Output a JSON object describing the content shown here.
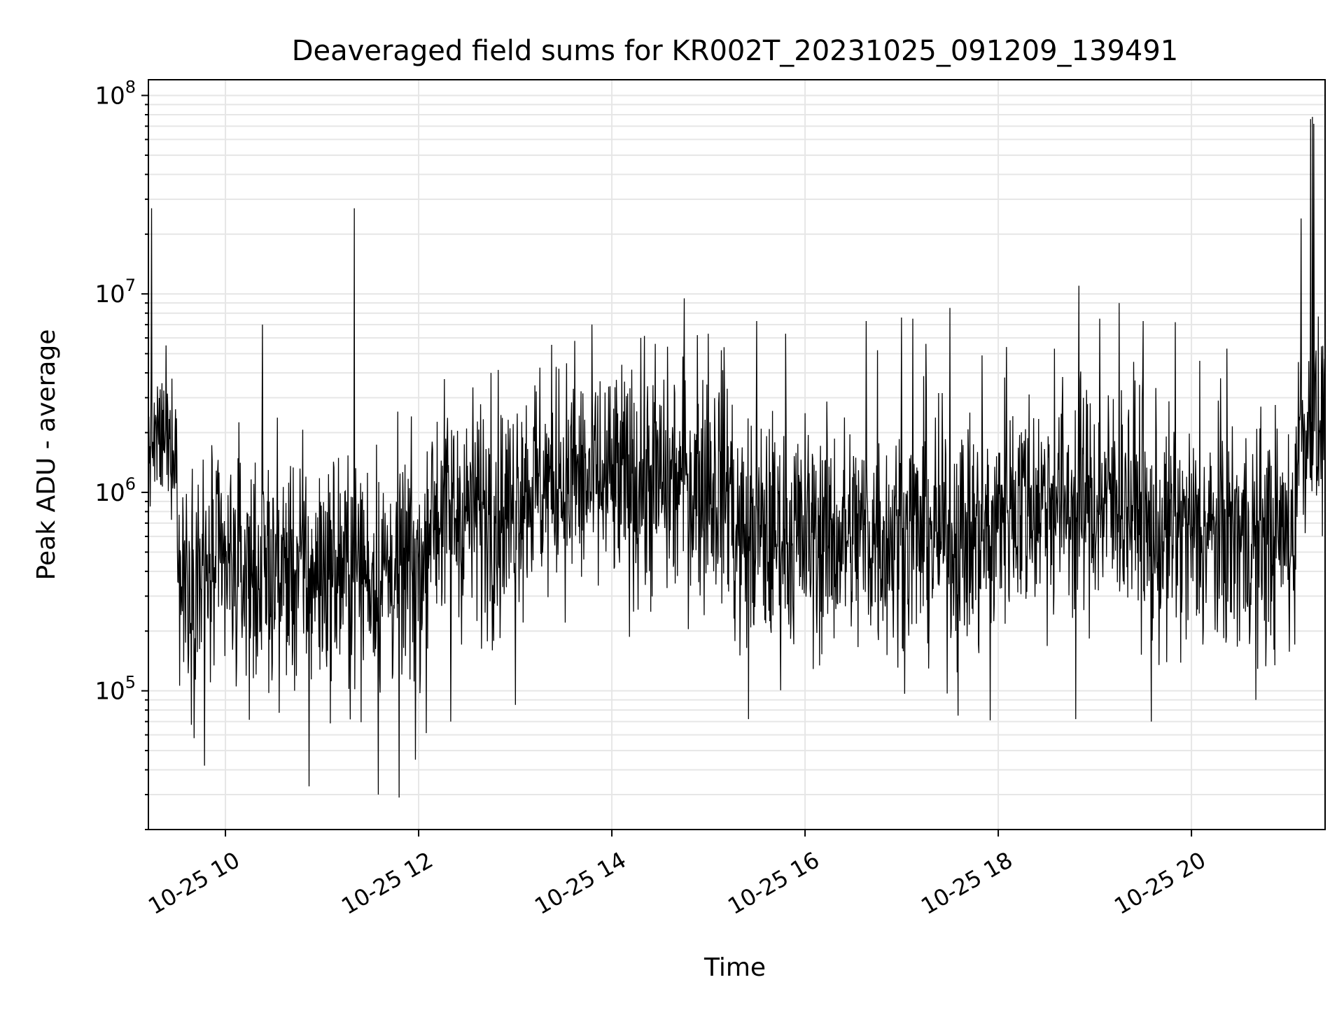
{
  "chart_data": {
    "type": "line",
    "title": "Deaveraged field sums for KR002T_20231025_091209_139491",
    "xlabel": "Time",
    "ylabel": "Peak ADU - average",
    "yscale": "log",
    "grid": true,
    "legend": "none",
    "xlim": [
      "2023-10-25T09:12:09",
      "2023-10-25T21:23:00"
    ],
    "ylim": [
      20000,
      120000000
    ],
    "x_ticks": [
      {
        "t": "2023-10-25T10:00:00",
        "label": "10-25 10"
      },
      {
        "t": "2023-10-25T12:00:00",
        "label": "10-25 12"
      },
      {
        "t": "2023-10-25T14:00:00",
        "label": "10-25 14"
      },
      {
        "t": "2023-10-25T16:00:00",
        "label": "10-25 16"
      },
      {
        "t": "2023-10-25T18:00:00",
        "label": "10-25 18"
      },
      {
        "t": "2023-10-25T20:00:00",
        "label": "10-25 20"
      }
    ],
    "y_ticks": [
      {
        "value": 100000,
        "base": "10",
        "exp": "5"
      },
      {
        "value": 1000000,
        "base": "10",
        "exp": "6"
      },
      {
        "value": 10000000,
        "base": "10",
        "exp": "7"
      },
      {
        "value": 100000000,
        "base": "10",
        "exp": "8"
      }
    ],
    "line_color": "#000000",
    "grid_color": "#e6e6e6",
    "baseline_segments": [
      {
        "from": "2023-10-25T09:12:09",
        "to": "2023-10-25T09:30:00",
        "median": 1800000,
        "spread": 0.16
      },
      {
        "from": "2023-10-25T09:30:00",
        "to": "2023-10-25T12:05:00",
        "median": 400000,
        "spread": 0.3
      },
      {
        "from": "2023-10-25T12:05:00",
        "to": "2023-10-25T13:00:00",
        "median": 800000,
        "spread": 0.3
      },
      {
        "from": "2023-10-25T13:00:00",
        "to": "2023-10-25T15:15:00",
        "median": 1100000,
        "spread": 0.3
      },
      {
        "from": "2023-10-25T15:15:00",
        "to": "2023-10-25T18:00:00",
        "median": 600000,
        "spread": 0.3
      },
      {
        "from": "2023-10-25T18:00:00",
        "to": "2023-10-25T19:30:00",
        "median": 900000,
        "spread": 0.3
      },
      {
        "from": "2023-10-25T19:30:00",
        "to": "2023-10-25T21:05:00",
        "median": 600000,
        "spread": 0.3
      },
      {
        "from": "2023-10-25T21:05:00",
        "to": "2023-10-25T21:23:00",
        "median": 2000000,
        "spread": 0.25
      }
    ],
    "spikes": [
      {
        "t": "2023-10-25T09:14:00",
        "value": 27000000
      },
      {
        "t": "2023-10-25T09:23:00",
        "value": 5500000
      },
      {
        "t": "2023-10-25T10:23:00",
        "value": 7000000
      },
      {
        "t": "2023-10-25T10:50:00",
        "value": 1200000
      },
      {
        "t": "2023-10-25T11:20:00",
        "value": 27000000
      },
      {
        "t": "2023-10-25T12:45:00",
        "value": 4000000
      },
      {
        "t": "2023-10-25T13:27:00",
        "value": 4200000
      },
      {
        "t": "2023-10-25T13:37:00",
        "value": 5800000
      },
      {
        "t": "2023-10-25T14:18:00",
        "value": 6000000
      },
      {
        "t": "2023-10-25T14:27:00",
        "value": 5600000
      },
      {
        "t": "2023-10-25T14:45:00",
        "value": 9500000
      },
      {
        "t": "2023-10-25T14:53:00",
        "value": 6200000
      },
      {
        "t": "2023-10-25T15:00:00",
        "value": 6300000
      },
      {
        "t": "2023-10-25T15:08:00",
        "value": 5200000
      },
      {
        "t": "2023-10-25T15:30:00",
        "value": 7300000
      },
      {
        "t": "2023-10-25T15:48:00",
        "value": 6300000
      },
      {
        "t": "2023-10-25T16:38:00",
        "value": 7300000
      },
      {
        "t": "2023-10-25T16:45:00",
        "value": 5200000
      },
      {
        "t": "2023-10-25T17:00:00",
        "value": 7600000
      },
      {
        "t": "2023-10-25T17:07:00",
        "value": 7500000
      },
      {
        "t": "2023-10-25T17:15:00",
        "value": 5600000
      },
      {
        "t": "2023-10-25T17:30:00",
        "value": 8500000
      },
      {
        "t": "2023-10-25T17:50:00",
        "value": 4900000
      },
      {
        "t": "2023-10-25T18:05:00",
        "value": 5400000
      },
      {
        "t": "2023-10-25T18:35:00",
        "value": 5300000
      },
      {
        "t": "2023-10-25T18:50:00",
        "value": 11000000
      },
      {
        "t": "2023-10-25T19:03:00",
        "value": 7500000
      },
      {
        "t": "2023-10-25T19:15:00",
        "value": 9000000
      },
      {
        "t": "2023-10-25T19:30:00",
        "value": 7300000
      },
      {
        "t": "2023-10-25T19:50:00",
        "value": 7200000
      },
      {
        "t": "2023-10-25T20:05:00",
        "value": 4600000
      },
      {
        "t": "2023-10-25T20:22:00",
        "value": 5300000
      },
      {
        "t": "2023-10-25T21:08:00",
        "value": 24000000
      },
      {
        "t": "2023-10-25T21:14:00",
        "value": 76000000
      },
      {
        "t": "2023-10-25T21:15:00",
        "value": 78000000
      },
      {
        "t": "2023-10-25T21:16:00",
        "value": 72000000
      },
      {
        "t": "2023-10-25T21:21:00",
        "value": 4000000
      }
    ],
    "dips": [
      {
        "t": "2023-10-25T09:47:00",
        "value": 42000
      },
      {
        "t": "2023-10-25T10:52:00",
        "value": 33000
      },
      {
        "t": "2023-10-25T11:35:00",
        "value": 30000
      },
      {
        "t": "2023-10-25T11:48:00",
        "value": 29000
      },
      {
        "t": "2023-10-25T11:58:00",
        "value": 45000
      },
      {
        "t": "2023-10-25T12:20:00",
        "value": 70000
      },
      {
        "t": "2023-10-25T13:00:00",
        "value": 85000
      },
      {
        "t": "2023-10-25T15:25:00",
        "value": 72000
      },
      {
        "t": "2023-10-25T17:35:00",
        "value": 75000
      },
      {
        "t": "2023-10-25T17:55:00",
        "value": 71000
      },
      {
        "t": "2023-10-25T18:48:00",
        "value": 72000
      },
      {
        "t": "2023-10-25T19:35:00",
        "value": 70000
      },
      {
        "t": "2023-10-25T20:40:00",
        "value": 90000
      }
    ]
  }
}
